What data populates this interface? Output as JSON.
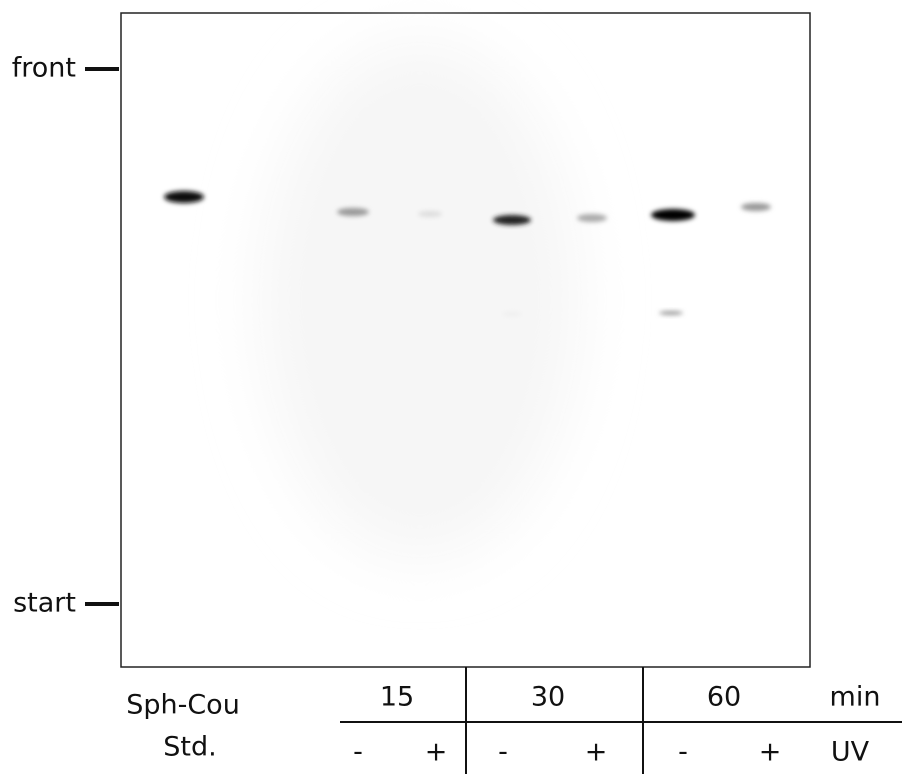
{
  "labels": {
    "front": "front",
    "start": "start"
  },
  "standard": {
    "name": "Sph-Cou",
    "note": "Std."
  },
  "times": [
    "15",
    "30",
    "60"
  ],
  "time_unit": "min",
  "uv": [
    "-",
    "+",
    "-",
    "+",
    "-",
    "+"
  ],
  "uv_label": "UV"
}
